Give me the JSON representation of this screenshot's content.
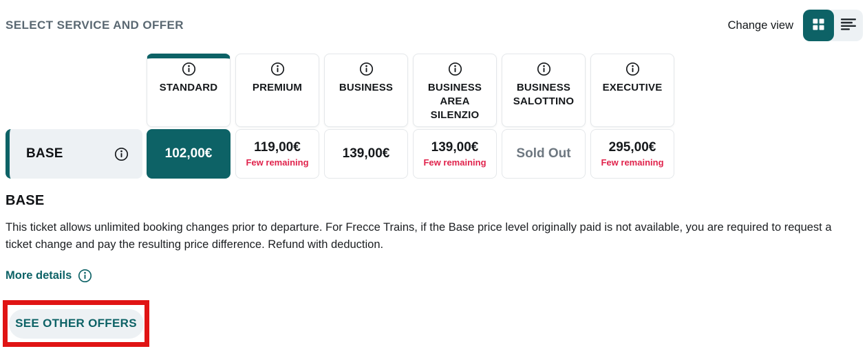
{
  "header": {
    "title": "SELECT SERVICE AND OFFER",
    "change_view_label": "Change view"
  },
  "view_toggle": {
    "active": "grid",
    "icons": [
      "grid-view-icon",
      "list-view-icon"
    ]
  },
  "services": [
    {
      "name": "STANDARD",
      "selected": true,
      "icon": "info-icon"
    },
    {
      "name": "PREMIUM",
      "selected": false,
      "icon": "info-icon"
    },
    {
      "name": "BUSINESS",
      "selected": false,
      "icon": "info-icon"
    },
    {
      "name": "BUSINESS AREA SILENZIO",
      "selected": false,
      "icon": "info-icon"
    },
    {
      "name": "BUSINESS SALOTTINO",
      "selected": false,
      "icon": "info-icon"
    },
    {
      "name": "EXECUTIVE",
      "selected": false,
      "icon": "info-icon"
    }
  ],
  "offer_row": {
    "name": "BASE",
    "icon": "info-icon",
    "cells": [
      {
        "price": "102,00€",
        "note": "",
        "state": "selected"
      },
      {
        "price": "119,00€",
        "note": "Few remaining",
        "state": "available"
      },
      {
        "price": "139,00€",
        "note": "",
        "state": "available"
      },
      {
        "price": "139,00€",
        "note": "Few remaining",
        "state": "available"
      },
      {
        "price": "Sold Out",
        "note": "",
        "state": "sold-out"
      },
      {
        "price": "295,00€",
        "note": "Few remaining",
        "state": "available"
      }
    ]
  },
  "details": {
    "heading": "BASE",
    "description": "This ticket allows unlimited booking changes prior to departure. For Frecce Trains, if the Base price level originally paid is not available, you are required to request a ticket change and pay the resulting price difference. Refund with deduction.",
    "more_details_label": "More details",
    "see_other_offers_label": "SEE OTHER OFFERS"
  },
  "colors": {
    "teal": "#0D6266",
    "light_gray": "#EDF1F4",
    "note_red": "#E0234C",
    "sold_out_gray": "#6D7780",
    "annotation_red": "#E01414",
    "title_gray": "#5A6872"
  }
}
